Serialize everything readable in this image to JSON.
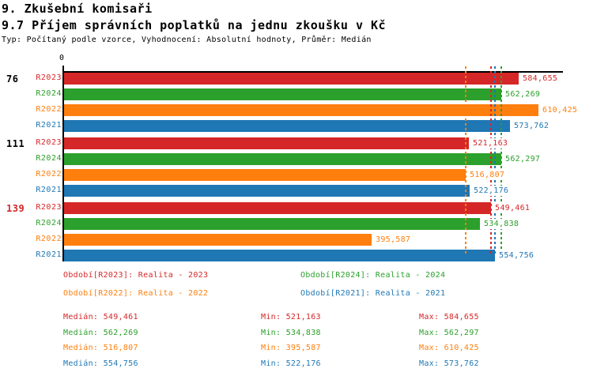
{
  "header": {
    "title": "9. Zkušební komisaři",
    "subtitle": "9.7 Příjem správních poplatků na jednu zkoušku v Kč",
    "meta": "Typ: Počítaný podle vzorce, Vyhodnocení: Absolutní hodnoty, Průměr: Medián"
  },
  "chart_data": {
    "type": "bar",
    "orientation": "horizontal",
    "value_unit": "Kč",
    "title": "9.7 Příjem správních poplatků na jednu zkoušku v Kč",
    "x_axis": {
      "zero_label": "0",
      "min": 0,
      "max": 610425,
      "gridlines": false
    },
    "series_order": [
      "R2023",
      "R2024",
      "R2022",
      "R2021"
    ],
    "series_colors": {
      "R2023": "#d62728",
      "R2024": "#2ca02c",
      "R2022": "#ff7f0e",
      "R2021": "#1f77b4"
    },
    "groups": [
      {
        "label": "76",
        "label_color": "#000000",
        "values": {
          "R2023": 584655,
          "R2024": 562269,
          "R2022": 610425,
          "R2021": 573762
        }
      },
      {
        "label": "111",
        "label_color": "#000000",
        "values": {
          "R2023": 521163,
          "R2024": 562297,
          "R2022": 516807,
          "R2021": 522176
        }
      },
      {
        "label": "139",
        "label_color": "#d62728",
        "values": {
          "R2023": 549461,
          "R2024": 534838,
          "R2022": 395587,
          "R2021": 554756
        }
      }
    ],
    "median_lines": {
      "R2023": 549461,
      "R2024": 562269,
      "R2022": 516807,
      "R2021": 554756
    }
  },
  "legend": {
    "items": [
      {
        "series": "R2023",
        "text": "Období[R2023]: Realita - 2023"
      },
      {
        "series": "R2024",
        "text": "Období[R2024]: Realita - 2024"
      },
      {
        "series": "R2022",
        "text": "Období[R2022]: Realita - 2022"
      },
      {
        "series": "R2021",
        "text": "Období[R2021]: Realita - 2021"
      }
    ]
  },
  "stats": {
    "labels": {
      "median": "Medián",
      "min": "Min",
      "max": "Max"
    },
    "rows": [
      {
        "series": "R2023",
        "median": 549461,
        "min": 521163,
        "max": 584655
      },
      {
        "series": "R2024",
        "median": 562269,
        "min": 534838,
        "max": 562297
      },
      {
        "series": "R2022",
        "median": 516807,
        "min": 395587,
        "max": 610425
      },
      {
        "series": "R2021",
        "median": 554756,
        "min": 522176,
        "max": 573762
      }
    ]
  }
}
